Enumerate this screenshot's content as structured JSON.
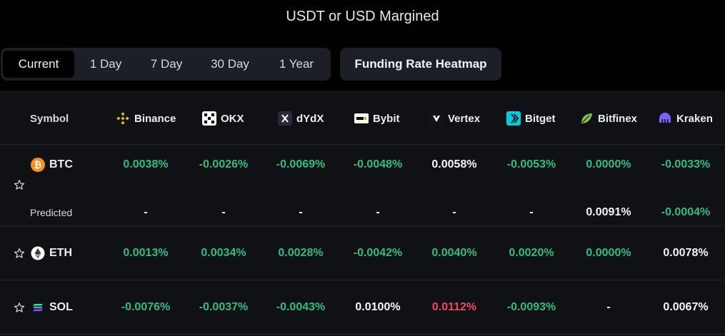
{
  "page_title": "USDT or USD Margined",
  "tabs": [
    {
      "label": "Current",
      "active": true
    },
    {
      "label": "1 Day",
      "active": false
    },
    {
      "label": "7 Day",
      "active": false
    },
    {
      "label": "30 Day",
      "active": false
    },
    {
      "label": "1 Year",
      "active": false
    }
  ],
  "heatmap_button": "Funding Rate Heatmap",
  "table": {
    "symbol_header": "Symbol",
    "exchanges": [
      {
        "name": "Binance",
        "icon": "binance-icon"
      },
      {
        "name": "OKX",
        "icon": "okx-icon"
      },
      {
        "name": "dYdX",
        "icon": "dydx-icon"
      },
      {
        "name": "Bybit",
        "icon": "bybit-icon"
      },
      {
        "name": "Vertex",
        "icon": "vertex-icon"
      },
      {
        "name": "Bitget",
        "icon": "bitget-icon"
      },
      {
        "name": "Bitfinex",
        "icon": "bitfinex-icon"
      },
      {
        "name": "Kraken",
        "icon": "kraken-icon"
      }
    ],
    "predicted_label": "Predicted",
    "rows": [
      {
        "symbol": "BTC",
        "coin_icon": "btc-icon",
        "rates": [
          {
            "value": "0.0038%",
            "color": "#2ebd85"
          },
          {
            "value": "-0.0026%",
            "color": "#2ebd85"
          },
          {
            "value": "-0.0069%",
            "color": "#2ebd85"
          },
          {
            "value": "-0.0048%",
            "color": "#2ebd85"
          },
          {
            "value": "0.0058%",
            "color": "#f4f5f7"
          },
          {
            "value": "-0.0053%",
            "color": "#2ebd85"
          },
          {
            "value": "0.0000%",
            "color": "#2ebd85"
          },
          {
            "value": "-0.0033%",
            "color": "#2ebd85"
          }
        ],
        "predicted": [
          {
            "value": "-",
            "color": "#f4f5f7"
          },
          {
            "value": "-",
            "color": "#f4f5f7"
          },
          {
            "value": "-",
            "color": "#f4f5f7"
          },
          {
            "value": "-",
            "color": "#f4f5f7"
          },
          {
            "value": "-",
            "color": "#f4f5f7"
          },
          {
            "value": "-",
            "color": "#f4f5f7"
          },
          {
            "value": "0.0091%",
            "color": "#f4f5f7"
          },
          {
            "value": "-0.0004%",
            "color": "#2ebd85"
          }
        ]
      },
      {
        "symbol": "ETH",
        "coin_icon": "eth-icon",
        "rates": [
          {
            "value": "0.0013%",
            "color": "#2ebd85"
          },
          {
            "value": "0.0034%",
            "color": "#2ebd85"
          },
          {
            "value": "0.0028%",
            "color": "#2ebd85"
          },
          {
            "value": "-0.0042%",
            "color": "#2ebd85"
          },
          {
            "value": "0.0040%",
            "color": "#2ebd85"
          },
          {
            "value": "0.0020%",
            "color": "#2ebd85"
          },
          {
            "value": "0.0000%",
            "color": "#2ebd85"
          },
          {
            "value": "0.0078%",
            "color": "#f4f5f7"
          }
        ]
      },
      {
        "symbol": "SOL",
        "coin_icon": "sol-icon",
        "rates": [
          {
            "value": "-0.0076%",
            "color": "#2ebd85"
          },
          {
            "value": "-0.0037%",
            "color": "#2ebd85"
          },
          {
            "value": "-0.0043%",
            "color": "#2ebd85"
          },
          {
            "value": "0.0100%",
            "color": "#f4f5f7"
          },
          {
            "value": "0.0112%",
            "color": "#f6465d"
          },
          {
            "value": "-0.0093%",
            "color": "#2ebd85"
          },
          {
            "value": "-",
            "color": "#f4f5f7"
          },
          {
            "value": "0.0067%",
            "color": "#f4f5f7"
          }
        ]
      }
    ]
  }
}
